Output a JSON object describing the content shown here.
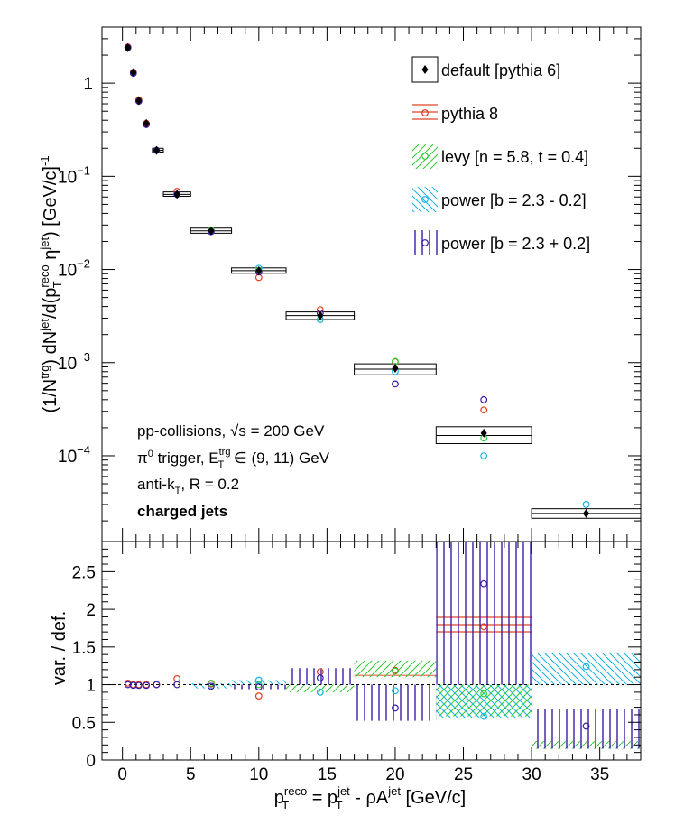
{
  "chart_data": [
    {
      "panel": "spectrum",
      "type": "scatter",
      "yscale": "log",
      "xlim": [
        -1.5,
        38
      ],
      "ylim": [
        1.2e-05,
        4
      ],
      "ylabel_parts": {
        "a": "(1/N",
        "b": "trg",
        "c": ") dN",
        "d": "jet",
        "e": "/d(p",
        "f": "reco",
        "g": "T",
        "h": " η",
        "i": "jet",
        "j": ") [GeV/c]",
        "k": "-1"
      },
      "y_ticks": [
        {
          "value": 1,
          "base": "1",
          "exp": ""
        },
        {
          "value": 0.1,
          "base": "10",
          "exp": "−1"
        },
        {
          "value": 0.01,
          "base": "10",
          "exp": "−2"
        },
        {
          "value": 0.001,
          "base": "10",
          "exp": "−3"
        },
        {
          "value": 0.0001,
          "base": "10",
          "exp": "−4"
        }
      ],
      "annotations": {
        "line1_a": "pp-collisions, ",
        "line1_b": "√s",
        "line1_c": " = 200 GeV",
        "line2_a": "π",
        "line2_b": "0",
        "line2_c": " trigger, E",
        "line2_d": "trg",
        "line2_e": "T",
        "line2_f": " ∈ (9, 11) GeV",
        "line3_a": "anti-k",
        "line3_b": "T",
        "line3_c": ", R = 0.2",
        "line4": "charged jets"
      },
      "legend": [
        {
          "label": "default [pythia 6]",
          "color": "#000000"
        },
        {
          "label": "pythia 8",
          "color": "#e03c1e"
        },
        {
          "label": "levy [n = 5.8, t = 0.4]",
          "color": "#33cc33"
        },
        {
          "label": "power [b = 2.3 - 0.2]",
          "color": "#1ab4e6"
        },
        {
          "label": "power [b = 2.3 + 0.2]",
          "color": "#3a1aa8"
        }
      ],
      "default_boxes": [
        {
          "x0": 2.2,
          "x1": 3.0,
          "y": 0.19,
          "ylo": 0.182,
          "yhi": 0.2
        },
        {
          "x0": 3.0,
          "x1": 5.0,
          "y": 0.064,
          "ylo": 0.061,
          "yhi": 0.068
        },
        {
          "x0": 5.0,
          "x1": 8.0,
          "y": 0.026,
          "ylo": 0.0245,
          "yhi": 0.0278
        },
        {
          "x0": 8.0,
          "x1": 12.0,
          "y": 0.0097,
          "ylo": 0.0091,
          "yhi": 0.0104
        },
        {
          "x0": 12.0,
          "x1": 17.0,
          "y": 0.0032,
          "ylo": 0.0029,
          "yhi": 0.0035
        },
        {
          "x0": 17.0,
          "x1": 23.0,
          "y": 0.00085,
          "ylo": 0.00074,
          "yhi": 0.00097
        },
        {
          "x0": 23.0,
          "x1": 30.0,
          "y": 0.000165,
          "ylo": 0.000135,
          "yhi": 0.000205
        },
        {
          "x0": 30.0,
          "x1": 38.0,
          "y": 2.4e-05,
          "ylo": 2.13e-05,
          "yhi": 2.7e-05
        }
      ],
      "series": [
        {
          "name": "default [pythia 6]",
          "color": "#000000",
          "marker": "diamond",
          "x": [
            0.4,
            0.8,
            1.2,
            1.75,
            2.5,
            4.0,
            6.5,
            10.0,
            14.5,
            20.0,
            26.5,
            34.0
          ],
          "y": [
            2.4,
            1.3,
            0.65,
            0.37,
            0.19,
            0.064,
            0.026,
            0.0097,
            0.0032,
            0.00087,
            0.000175,
            2.4e-05
          ]
        },
        {
          "name": "pythia 8",
          "color": "#e03c1e",
          "marker": "circle",
          "x": [
            0.4,
            0.8,
            1.2,
            1.75,
            2.5,
            4.0,
            6.5,
            10.0,
            14.5,
            20.0,
            26.5
          ],
          "y": [
            2.45,
            1.31,
            0.66,
            0.37,
            0.19,
            0.069,
            0.026,
            0.0082,
            0.0037,
            0.00102,
            0.00031
          ]
        },
        {
          "name": "levy [n = 5.8, t = 0.4]",
          "color": "#33cc33",
          "marker": "circle",
          "x": [
            6.5,
            10.0,
            14.5,
            20.0,
            26.5
          ],
          "y": [
            0.0265,
            0.0097,
            0.0029,
            0.00103,
            0.000155
          ]
        },
        {
          "name": "power [b = 2.3 - 0.2]",
          "color": "#1ab4e6",
          "marker": "circle",
          "x": [
            6.5,
            10.0,
            14.5,
            20.0,
            26.5,
            34.0
          ],
          "y": [
            0.0255,
            0.0103,
            0.0029,
            0.0008,
            0.0001,
            3e-05
          ]
        },
        {
          "name": "power [b = 2.3 + 0.2]",
          "color": "#3a1aa8",
          "marker": "circle",
          "x": [
            0.4,
            0.8,
            1.2,
            1.75,
            2.5,
            4.0,
            6.5,
            10.0,
            14.5,
            20.0,
            26.5
          ],
          "y": [
            2.4,
            1.28,
            0.64,
            0.36,
            0.19,
            0.064,
            0.0255,
            0.0094,
            0.0034,
            0.00059,
            0.0004
          ]
        }
      ]
    },
    {
      "panel": "ratio",
      "type": "scatter",
      "xlim": [
        -1.5,
        38
      ],
      "ylim": [
        0,
        2.9
      ],
      "xlabel_parts": {
        "a": "p",
        "b": "reco",
        "c": "T",
        "d": " = p",
        "e": "jet",
        "f": "T",
        "g": " - ρA",
        "h": "jet",
        "i": " [GeV/c]"
      },
      "ylabel": "var. / def.",
      "x_ticks": [
        0,
        5,
        10,
        15,
        20,
        25,
        30,
        35
      ],
      "y_ticks": [
        0,
        0.5,
        1,
        1.5,
        2,
        2.5
      ],
      "bands": [
        {
          "name": "pythia 8",
          "color": "#e03c1e",
          "x0": 23.0,
          "x1": 30.0,
          "y0": 1.62,
          "y1": 1.93
        },
        {
          "name": "pythia 8",
          "color": "#e03c1e",
          "x0": 17.0,
          "x1": 23.0,
          "y0": 1.11,
          "y1": 1.13
        },
        {
          "name": "levy",
          "color": "#33cc33",
          "x0": 17.0,
          "x1": 23.0,
          "y0": 1.1,
          "y1": 1.32
        },
        {
          "name": "levy",
          "color": "#33cc33",
          "x0": 12.0,
          "x1": 17.0,
          "y0": 0.9,
          "y1": 1.0
        },
        {
          "name": "levy",
          "color": "#33cc33",
          "x0": 23.0,
          "x1": 30.0,
          "y0": 0.58,
          "y1": 1.0
        },
        {
          "name": "levy",
          "color": "#33cc33",
          "x0": 30.0,
          "x1": 38.0,
          "y0": 0.15,
          "y1": 0.25
        },
        {
          "name": "power [b = 2.3 - 0.2]",
          "color": "#1ab4e6",
          "x0": 5.0,
          "x1": 8.0,
          "y0": 0.95,
          "y1": 1.02
        },
        {
          "name": "power [b = 2.3 - 0.2]",
          "color": "#1ab4e6",
          "x0": 8.0,
          "x1": 12.0,
          "y0": 1.0,
          "y1": 1.06
        },
        {
          "name": "power [b = 2.3 - 0.2]",
          "color": "#1ab4e6",
          "x0": 23.0,
          "x1": 30.0,
          "y0": 0.55,
          "y1": 1.0
        },
        {
          "name": "power [b = 2.3 - 0.2]",
          "color": "#1ab4e6",
          "x0": 30.0,
          "x1": 38.0,
          "y0": 1.0,
          "y1": 1.42
        },
        {
          "name": "power [b = 2.3 + 0.2]",
          "color": "#3a1aa8",
          "x0": 8.0,
          "x1": 12.0,
          "y0": 0.94,
          "y1": 1.0
        },
        {
          "name": "power [b = 2.3 + 0.2]",
          "color": "#3a1aa8",
          "x0": 12.0,
          "x1": 17.0,
          "y0": 1.0,
          "y1": 1.22
        },
        {
          "name": "power [b = 2.3 + 0.2]",
          "color": "#3a1aa8",
          "x0": 17.0,
          "x1": 23.0,
          "y0": 0.52,
          "y1": 1.0
        },
        {
          "name": "power [b = 2.3 + 0.2]",
          "color": "#3a1aa8",
          "x0": 23.0,
          "x1": 30.0,
          "y0": 1.0,
          "y1": 2.9
        },
        {
          "name": "power [b = 2.3 + 0.2]",
          "color": "#3a1aa8",
          "x0": 30.0,
          "x1": 38.0,
          "y0": 0.15,
          "y1": 0.68
        }
      ],
      "series": [
        {
          "name": "pythia 8",
          "color": "#e03c1e",
          "x": [
            0.4,
            0.8,
            1.2,
            1.75,
            2.5,
            4.0,
            6.5,
            10.0,
            14.5,
            20.0,
            26.5
          ],
          "y": [
            1.02,
            1.0,
            1.0,
            1.0,
            1.0,
            1.08,
            1.01,
            0.85,
            1.17,
            1.19,
            1.77
          ]
        },
        {
          "name": "levy [n = 5.8, t = 0.4]",
          "color": "#33cc33",
          "x": [
            6.5,
            10.0,
            14.5,
            20.0,
            26.5
          ],
          "y": [
            1.02,
            1.0,
            0.9,
            1.18,
            0.88
          ]
        },
        {
          "name": "power [b = 2.3 - 0.2]",
          "color": "#1ab4e6",
          "x": [
            6.5,
            10.0,
            14.5,
            20.0,
            26.5,
            34.0
          ],
          "y": [
            0.98,
            1.06,
            0.9,
            0.92,
            0.58,
            1.24
          ]
        },
        {
          "name": "power [b = 2.3 + 0.2]",
          "color": "#3a1aa8",
          "x": [
            0.4,
            0.8,
            1.2,
            1.75,
            2.5,
            4.0,
            6.5,
            10.0,
            14.5,
            20.0,
            26.5,
            34.0
          ],
          "y": [
            1.0,
            0.99,
            0.99,
            0.99,
            1.0,
            1.0,
            0.98,
            0.97,
            1.09,
            0.69,
            2.34,
            0.45
          ]
        }
      ]
    }
  ]
}
